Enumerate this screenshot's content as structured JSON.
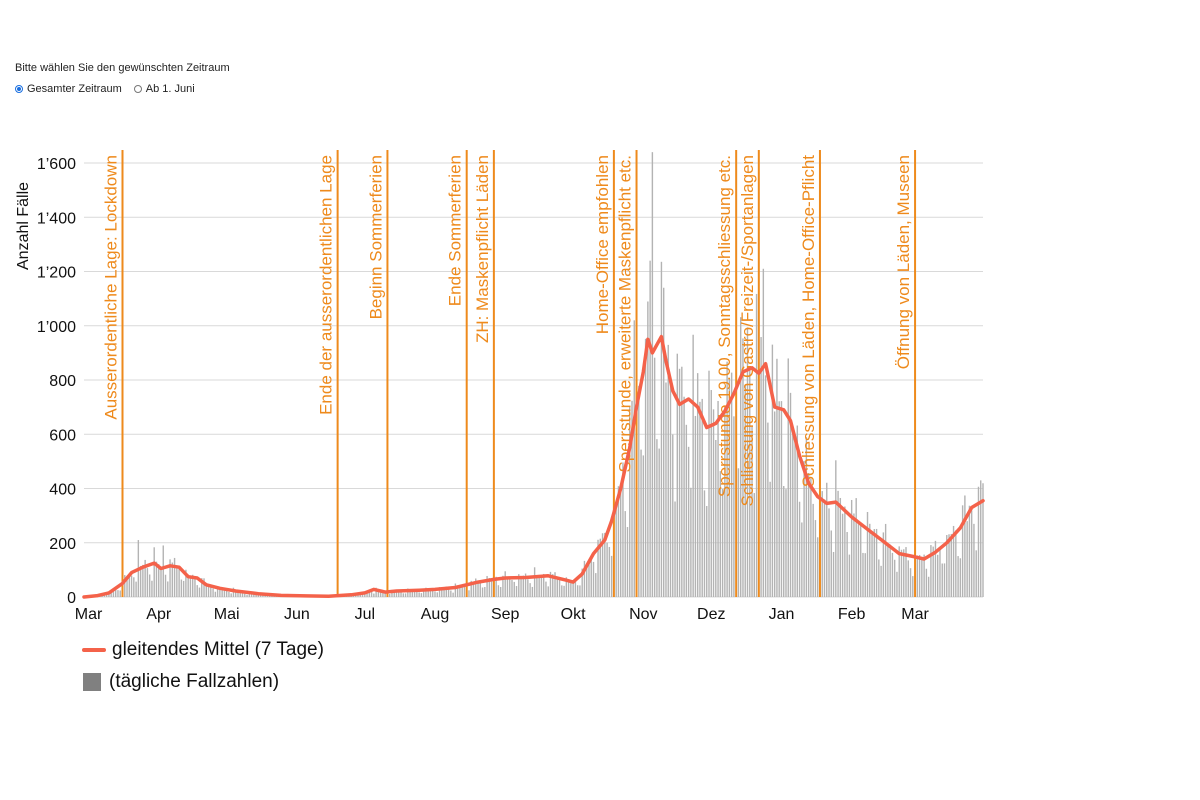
{
  "selector": {
    "prompt": "Bitte wählen Sie den gewünschten Zeitraum",
    "options": [
      {
        "label": "Gesamter Zeitraum",
        "selected": true
      },
      {
        "label": "Ab 1. Juni",
        "selected": false
      }
    ]
  },
  "colors": {
    "mean_line": "#f4624a",
    "bars": "#b3b3b3",
    "annotations": "#ee8a1c",
    "grid": "#d9d9d9",
    "radio_selected": "#1a6fe0"
  },
  "legend": {
    "line_label": "gleitendes Mittel (7 Tage)",
    "bar_label": "(tägliche Fallzahlen)"
  },
  "chart_data": {
    "type": "bar",
    "ylabel": "Anzahl Fälle",
    "ylim": [
      0,
      1600
    ],
    "yticks": [
      0,
      200,
      400,
      600,
      800,
      1000,
      1200,
      1400,
      1600
    ],
    "ytick_labels": [
      "0",
      "200",
      "400",
      "600",
      "800",
      "1’000",
      "1’200",
      "1’400",
      "1’600"
    ],
    "grid": true,
    "x_range": [
      "2020-02-28",
      "2021-03-31"
    ],
    "xticks": [
      {
        "date": "2020-03-01",
        "label": "Mar"
      },
      {
        "date": "2020-04-01",
        "label": "Apr"
      },
      {
        "date": "2020-05-01",
        "label": "Mai"
      },
      {
        "date": "2020-06-01",
        "label": "Jun"
      },
      {
        "date": "2020-07-01",
        "label": "Jul"
      },
      {
        "date": "2020-08-01",
        "label": "Aug"
      },
      {
        "date": "2020-09-01",
        "label": "Sep"
      },
      {
        "date": "2020-10-01",
        "label": "Okt"
      },
      {
        "date": "2020-11-01",
        "label": "Nov"
      },
      {
        "date": "2020-12-01",
        "label": "Dez"
      },
      {
        "date": "2021-01-01",
        "label": "Jan"
      },
      {
        "date": "2021-02-01",
        "label": "Feb"
      },
      {
        "date": "2021-03-01",
        "label": "Mar"
      }
    ],
    "series": [
      {
        "name": "gleitendes Mittel (7 Tage)",
        "kind": "line",
        "points": [
          [
            "2020-02-28",
            0
          ],
          [
            "2020-03-05",
            5
          ],
          [
            "2020-03-10",
            15
          ],
          [
            "2020-03-16",
            50
          ],
          [
            "2020-03-20",
            90
          ],
          [
            "2020-03-25",
            110
          ],
          [
            "2020-03-30",
            125
          ],
          [
            "2020-04-02",
            105
          ],
          [
            "2020-04-06",
            115
          ],
          [
            "2020-04-10",
            110
          ],
          [
            "2020-04-14",
            75
          ],
          [
            "2020-04-18",
            70
          ],
          [
            "2020-04-22",
            45
          ],
          [
            "2020-04-28",
            32
          ],
          [
            "2020-05-05",
            22
          ],
          [
            "2020-05-15",
            12
          ],
          [
            "2020-05-25",
            6
          ],
          [
            "2020-06-05",
            4
          ],
          [
            "2020-06-15",
            3
          ],
          [
            "2020-06-25",
            8
          ],
          [
            "2020-07-01",
            15
          ],
          [
            "2020-07-05",
            28
          ],
          [
            "2020-07-10",
            18
          ],
          [
            "2020-07-15",
            22
          ],
          [
            "2020-07-25",
            25
          ],
          [
            "2020-08-01",
            28
          ],
          [
            "2020-08-10",
            35
          ],
          [
            "2020-08-20",
            55
          ],
          [
            "2020-08-27",
            65
          ],
          [
            "2020-09-01",
            70
          ],
          [
            "2020-09-10",
            72
          ],
          [
            "2020-09-20",
            78
          ],
          [
            "2020-09-28",
            62
          ],
          [
            "2020-10-01",
            55
          ],
          [
            "2020-10-05",
            85
          ],
          [
            "2020-10-10",
            160
          ],
          [
            "2020-10-15",
            210
          ],
          [
            "2020-10-18",
            280
          ],
          [
            "2020-10-22",
            400
          ],
          [
            "2020-10-26",
            550
          ],
          [
            "2020-10-29",
            700
          ],
          [
            "2020-11-01",
            830
          ],
          [
            "2020-11-03",
            950
          ],
          [
            "2020-11-05",
            900
          ],
          [
            "2020-11-07",
            930
          ],
          [
            "2020-11-09",
            960
          ],
          [
            "2020-11-11",
            870
          ],
          [
            "2020-11-14",
            760
          ],
          [
            "2020-11-17",
            710
          ],
          [
            "2020-11-21",
            730
          ],
          [
            "2020-11-25",
            700
          ],
          [
            "2020-11-29",
            625
          ],
          [
            "2020-12-03",
            640
          ],
          [
            "2020-12-07",
            685
          ],
          [
            "2020-12-11",
            750
          ],
          [
            "2020-12-15",
            830
          ],
          [
            "2020-12-19",
            845
          ],
          [
            "2020-12-22",
            825
          ],
          [
            "2020-12-25",
            860
          ],
          [
            "2020-12-29",
            700
          ],
          [
            "2021-01-02",
            690
          ],
          [
            "2021-01-05",
            650
          ],
          [
            "2021-01-09",
            520
          ],
          [
            "2021-01-13",
            420
          ],
          [
            "2021-01-17",
            370
          ],
          [
            "2021-01-21",
            345
          ],
          [
            "2021-01-25",
            350
          ],
          [
            "2021-02-01",
            295
          ],
          [
            "2021-02-08",
            250
          ],
          [
            "2021-02-15",
            205
          ],
          [
            "2021-02-22",
            160
          ],
          [
            "2021-03-01",
            148
          ],
          [
            "2021-03-05",
            140
          ],
          [
            "2021-03-10",
            165
          ],
          [
            "2021-03-15",
            200
          ],
          [
            "2021-03-21",
            255
          ],
          [
            "2021-03-26",
            330
          ],
          [
            "2021-03-31",
            355
          ]
        ]
      },
      {
        "name": "(tägliche Fallzahlen)",
        "kind": "bar",
        "note": "daily values approximate the moving mean with larger peaks",
        "notable_peaks": [
          [
            "2020-03-23",
            210
          ],
          [
            "2020-04-03",
            190
          ],
          [
            "2020-10-28",
            1020
          ],
          [
            "2020-11-04",
            1240
          ],
          [
            "2020-11-05",
            1650
          ],
          [
            "2020-12-24",
            1210
          ],
          [
            "2021-03-30",
            430
          ]
        ]
      }
    ],
    "annotations": [
      {
        "date": "2020-03-16",
        "label": "Ausserordentliche Lage: Lockdown"
      },
      {
        "date": "2020-06-19",
        "label": "Ende der ausserordentlichen Lage"
      },
      {
        "date": "2020-07-11",
        "label": "Beginn Sommerferien"
      },
      {
        "date": "2020-08-15",
        "label": "Ende Sommerferien"
      },
      {
        "date": "2020-08-27",
        "label": "ZH: Maskenpflicht Läden"
      },
      {
        "date": "2020-10-19",
        "label": "Home-Office empfohlen"
      },
      {
        "date": "2020-10-29",
        "label": "Sperrstunde, erweiterte Maskenpflicht etc."
      },
      {
        "date": "2020-12-12",
        "label": "Sperrstunde 19.00, Sonntagsschliessung etc."
      },
      {
        "date": "2020-12-22",
        "label": "Schliessung von Gastro/Freizeit-/Sportanlagen"
      },
      {
        "date": "2021-01-18",
        "label": "Schliessung von Läden, Home-Office-Pflicht"
      },
      {
        "date": "2021-03-01",
        "label": "Öffnung von Läden, Museen"
      }
    ]
  }
}
